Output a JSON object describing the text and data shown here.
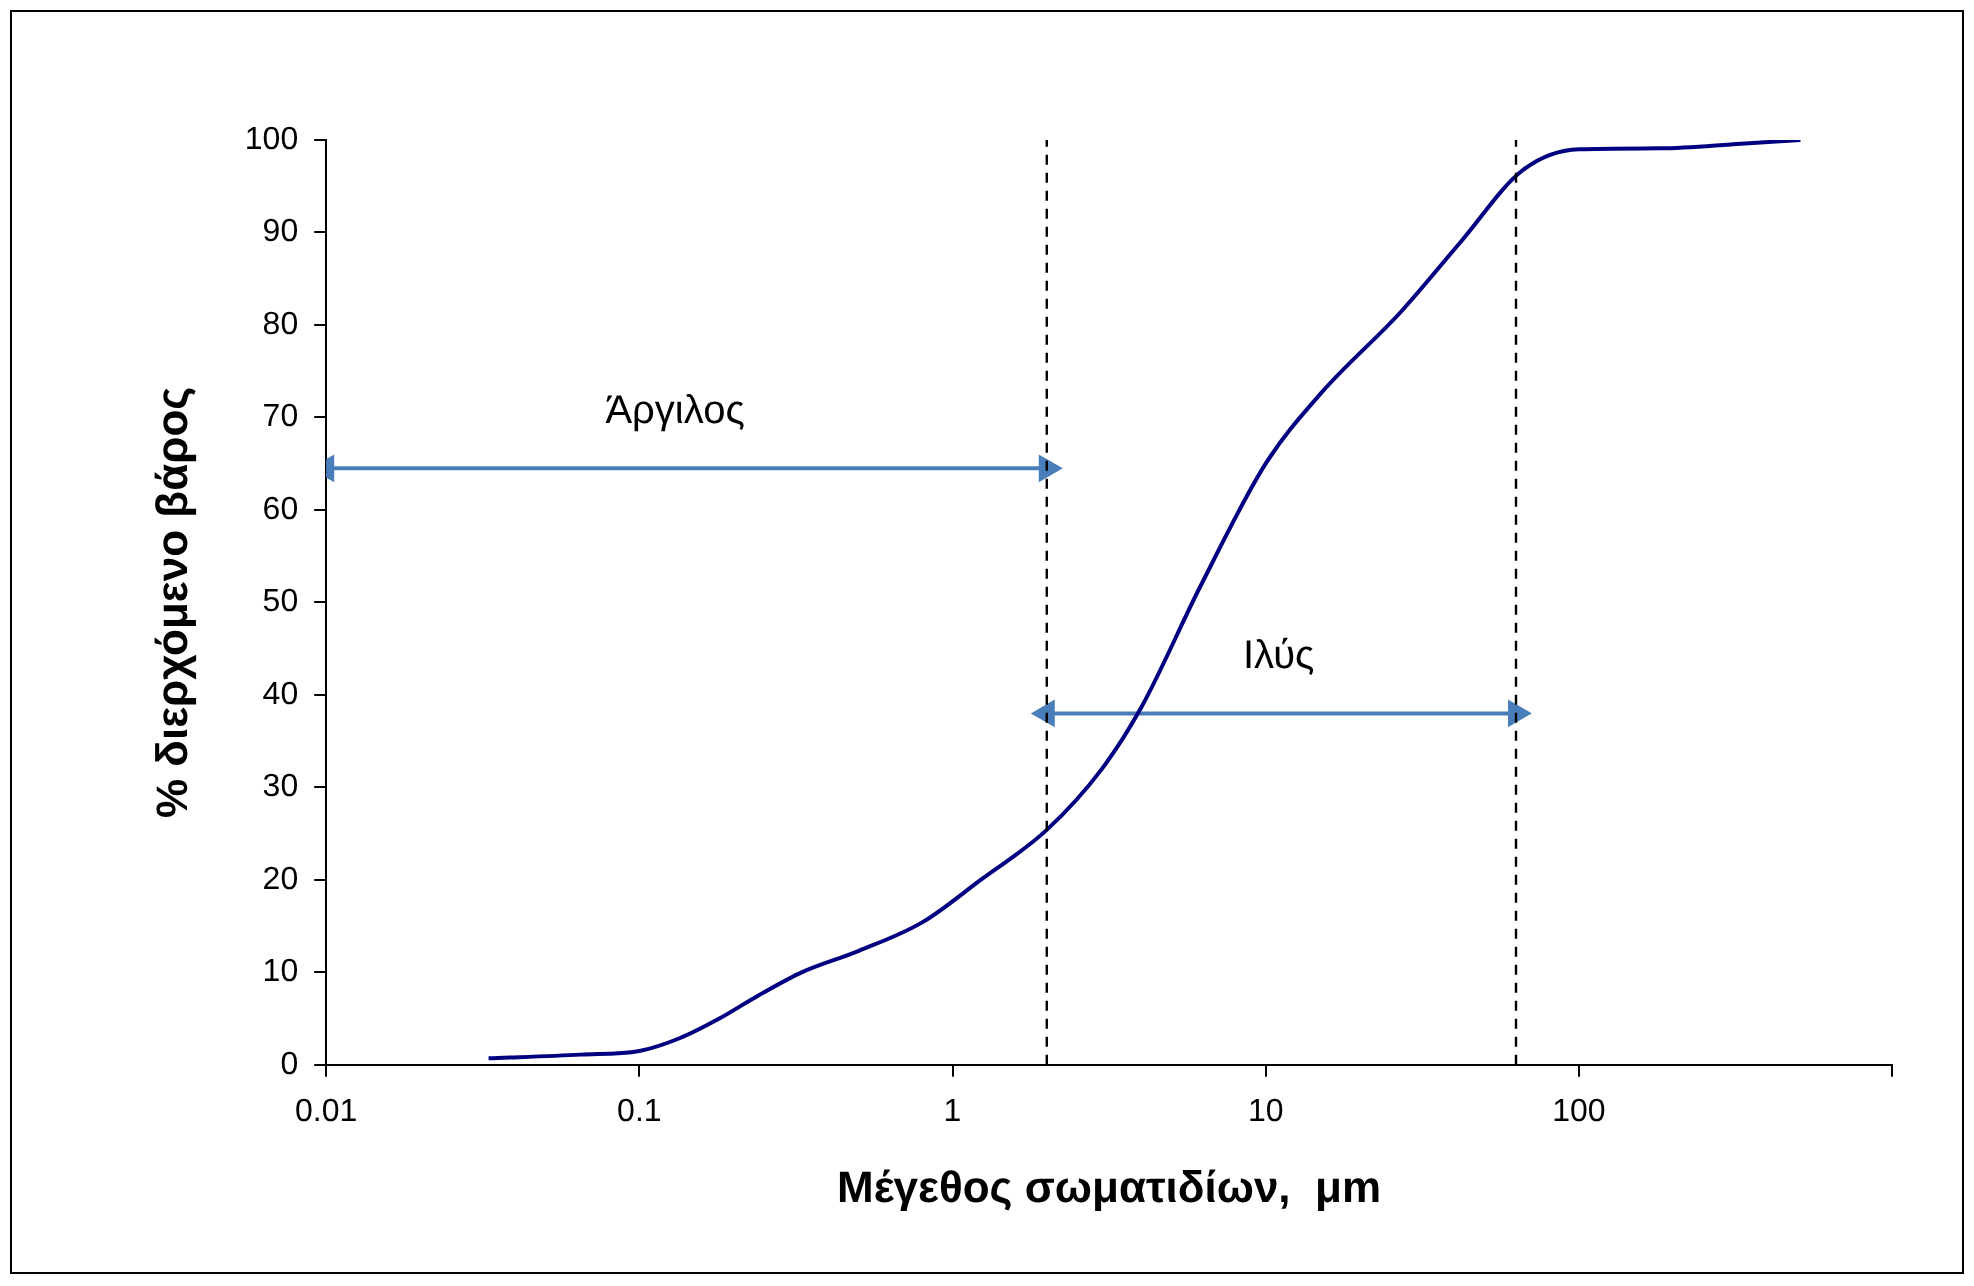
{
  "chart_data": {
    "type": "line",
    "xlabel": "Μέγεθος σωματιδίων,  μm",
    "ylabel": "% διερχόμενο βάρος",
    "log": "x",
    "xlim": [
      0.01,
      1000
    ],
    "xticks": [
      0.01,
      0.1,
      1,
      10,
      100,
      {
        "value": 1000,
        "label": null
      }
    ],
    "ylim": [
      0,
      100
    ],
    "yticks": [
      0,
      10,
      20,
      30,
      40,
      50,
      60,
      70,
      80,
      90,
      100
    ],
    "grid": false,
    "legend": false,
    "marker": "none",
    "line_style": "solid",
    "series": [
      {
        "color": "#000080",
        "x": [
          0.033,
          0.065,
          0.1,
          0.135,
          0.18,
          0.24,
          0.33,
          0.5,
          0.8,
          1.23,
          2,
          3,
          4,
          6.2,
          10,
          15,
          27,
          42,
          66,
          100,
          182,
          330,
          510
        ],
        "values": [
          0.7,
          1.1,
          1.5,
          2.9,
          5,
          7.5,
          10,
          12.3,
          15.4,
          20,
          25.4,
          32,
          38.6,
          51.8,
          65,
          72.6,
          81.4,
          89,
          96.7,
          99,
          99.1,
          99.6,
          100
        ]
      },
      {
        "type": "line",
        "color": "#4a7ebb",
        "marker": "triangle",
        "x": [
          0.01,
          2
        ],
        "values": [
          64.5,
          64.5
        ]
      },
      {
        "type": "line",
        "color": "#4a7ebb",
        "marker": "triangle",
        "x": [
          2,
          63
        ],
        "values": [
          38,
          38
        ]
      }
    ],
    "ref_lines": [
      {
        "axis": "x",
        "value": 2,
        "color": "#000000",
        "line_style": "dashed"
      },
      {
        "axis": "x",
        "value": 63,
        "color": "#000000",
        "line_style": "dashed"
      }
    ],
    "annotations": [
      {
        "text": "Άργιλος",
        "x": 0.13,
        "y": 64.5
      },
      {
        "text": "Ιλύς",
        "x": 11,
        "y": 38
      }
    ]
  }
}
